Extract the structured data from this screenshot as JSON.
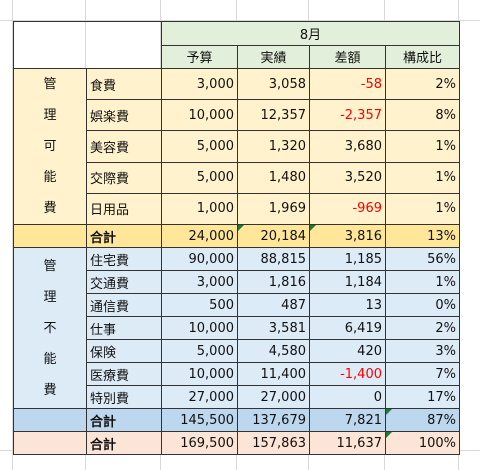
{
  "header": {
    "month": "8月",
    "columns": [
      "予算",
      "実績",
      "差額",
      "構成比"
    ]
  },
  "section1": {
    "label_chars": [
      "管",
      "理",
      "可",
      "能",
      "費"
    ],
    "rows": [
      {
        "name": "食費",
        "budget": "3,000",
        "actual": "3,058",
        "diff": "-58",
        "ratio": "2%"
      },
      {
        "name": "娯楽費",
        "budget": "10,000",
        "actual": "12,357",
        "diff": "-2,357",
        "ratio": "8%"
      },
      {
        "name": "美容費",
        "budget": "5,000",
        "actual": "1,320",
        "diff": "3,680",
        "ratio": "1%"
      },
      {
        "name": "交際費",
        "budget": "5,000",
        "actual": "1,480",
        "diff": "3,520",
        "ratio": "1%"
      },
      {
        "name": "日用品",
        "budget": "1,000",
        "actual": "1,969",
        "diff": "-969",
        "ratio": "1%"
      }
    ],
    "total": {
      "name": "合計",
      "budget": "24,000",
      "actual": "20,184",
      "diff": "3,816",
      "ratio": "13%"
    }
  },
  "section2": {
    "label_chars": [
      "管",
      "理",
      "不",
      "能",
      "費"
    ],
    "rows": [
      {
        "name": "住宅費",
        "budget": "90,000",
        "actual": "88,815",
        "diff": "1,185",
        "ratio": "56%"
      },
      {
        "name": "交通費",
        "budget": "3,000",
        "actual": "1,816",
        "diff": "1,184",
        "ratio": "1%"
      },
      {
        "name": "通信費",
        "budget": "500",
        "actual": "487",
        "diff": "13",
        "ratio": "0%"
      },
      {
        "name": "仕事",
        "budget": "10,000",
        "actual": "3,581",
        "diff": "6,419",
        "ratio": "2%"
      },
      {
        "name": "保険",
        "budget": "5,000",
        "actual": "4,580",
        "diff": "420",
        "ratio": "3%"
      },
      {
        "name": "医療費",
        "budget": "10,000",
        "actual": "11,400",
        "diff": "-1,400",
        "ratio": "7%"
      },
      {
        "name": "特別費",
        "budget": "27,000",
        "actual": "27,000",
        "diff": "0",
        "ratio": "17%"
      }
    ],
    "total": {
      "name": "合計",
      "budget": "145,500",
      "actual": "137,679",
      "diff": "7,821",
      "ratio": "87%"
    }
  },
  "grand_total": {
    "name": "合計",
    "budget": "169,500",
    "actual": "157,863",
    "diff": "11,637",
    "ratio": "100%"
  },
  "colors": {
    "header_green": "#e2efda",
    "section1_fill": "#fff2cc",
    "section1_total_fill": "#ffe699",
    "section2_fill": "#ddebf7",
    "section2_total_fill": "#bdd7ee",
    "grand_total_fill": "#fce4d6",
    "negative_text": "#ff0000"
  }
}
